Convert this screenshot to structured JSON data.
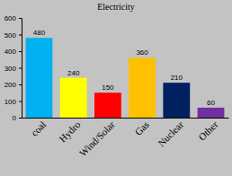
{
  "chart_data": {
    "type": "bar",
    "title": "Electricity",
    "categories": [
      "coal",
      "Hydro",
      "Wind/Solar",
      "Gas",
      "Nuclear",
      "Other"
    ],
    "values": [
      480,
      240,
      150,
      360,
      210,
      60
    ],
    "colors": [
      "#00b0f0",
      "#ffff00",
      "#ff0000",
      "#ffc000",
      "#002060",
      "#7030a0"
    ],
    "ylim": [
      0,
      600
    ],
    "yticks": [
      0,
      100,
      200,
      300,
      400,
      500,
      600
    ],
    "grid": false,
    "data_labels": true
  }
}
